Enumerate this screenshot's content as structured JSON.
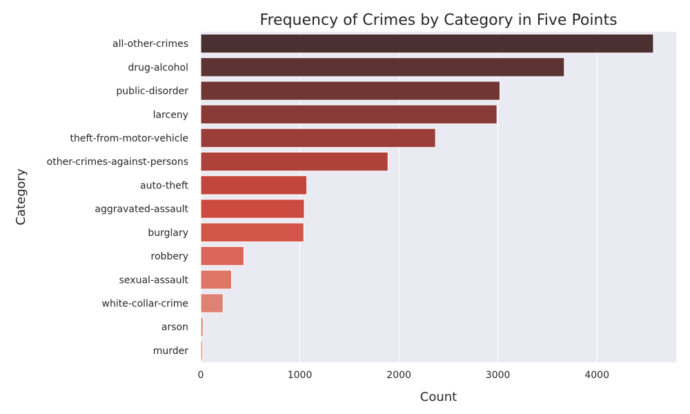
{
  "chart_data": {
    "type": "bar",
    "orientation": "horizontal",
    "title": "Frequency of Crimes by Category in Five Points",
    "xlabel": "Count",
    "ylabel": "Category",
    "xlim": [
      0,
      4800
    ],
    "xticks": [
      0,
      1000,
      2000,
      3000,
      4000
    ],
    "grid": true,
    "categories": [
      "all-other-crimes",
      "drug-alcohol",
      "public-disorder",
      "larceny",
      "theft-from-motor-vehicle",
      "other-crimes-against-persons",
      "auto-theft",
      "aggravated-assault",
      "burglary",
      "robbery",
      "sexual-assault",
      "white-collar-crime",
      "arson",
      "murder"
    ],
    "values": [
      4570,
      3670,
      3020,
      2990,
      2370,
      1890,
      1070,
      1045,
      1040,
      435,
      310,
      225,
      25,
      20
    ],
    "colors": [
      "#4a3031",
      "#5c3232",
      "#6f3634",
      "#883a37",
      "#9b3e39",
      "#af413b",
      "#c4453c",
      "#cc4a40",
      "#d4564a",
      "#da6558",
      "#de7565",
      "#e08273",
      "#e4907f",
      "#e7a08d"
    ]
  }
}
